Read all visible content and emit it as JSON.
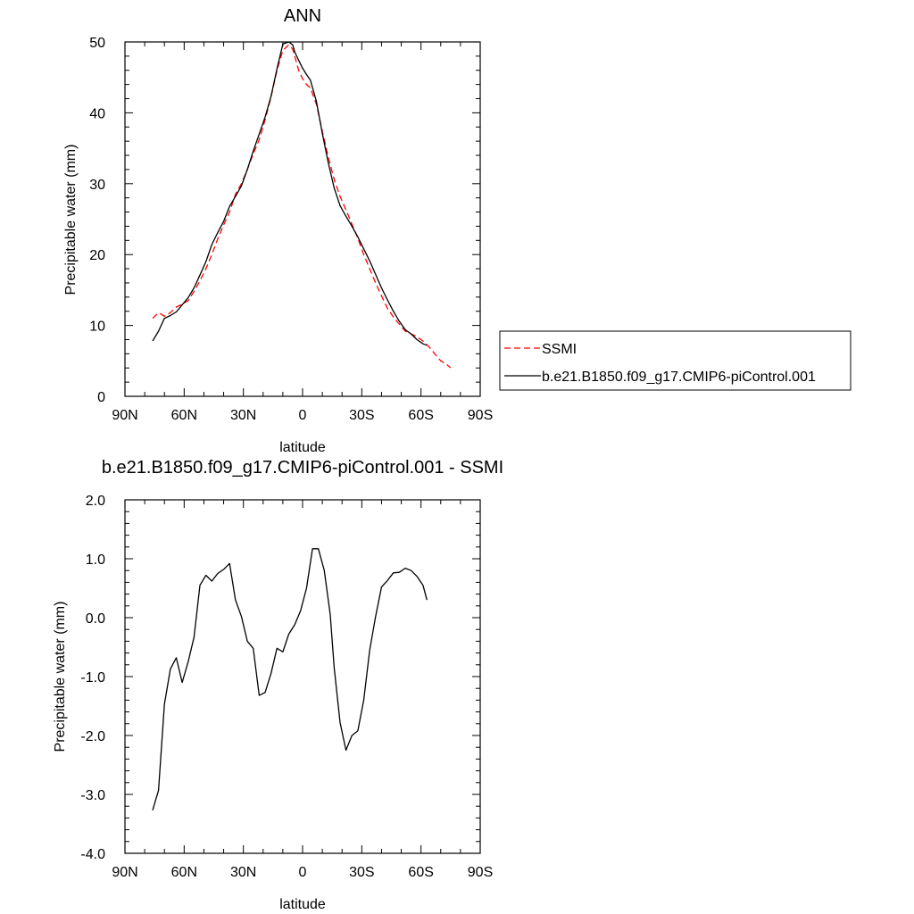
{
  "chart_data": [
    {
      "type": "line",
      "title": "ANN",
      "xlabel": "latitude",
      "ylabel": "Precipitable water (mm)",
      "xlim": [
        -90,
        90
      ],
      "ylim": [
        0,
        50
      ],
      "x_tick_values": [
        -90,
        -60,
        -30,
        0,
        30,
        60,
        90
      ],
      "x_tick_labels": [
        "90N",
        "60N",
        "30N",
        "0",
        "30S",
        "60S",
        "90S"
      ],
      "y_tick_values": [
        0,
        10,
        20,
        30,
        40,
        50
      ],
      "y_tick_labels": [
        "0",
        "10",
        "20",
        "30",
        "40",
        "50"
      ],
      "grid": false,
      "legend": {
        "placement": "right"
      },
      "series": [
        {
          "name": "SSMI",
          "color": "#ff0000",
          "dash": "dashed",
          "x": [
            -76,
            -73,
            -70,
            -67,
            -64,
            -61,
            -58,
            -55,
            -52,
            -49,
            -46,
            -43,
            -40,
            -37,
            -34,
            -31,
            -28,
            -25,
            -22,
            -19,
            -16,
            -13,
            -10,
            -7,
            -5,
            -4,
            -2,
            0,
            2,
            4,
            7,
            10,
            13,
            16,
            19,
            22,
            25,
            28,
            31,
            34,
            37,
            40,
            43,
            46,
            49,
            52,
            55,
            58,
            61,
            64,
            67,
            70,
            73,
            75
          ],
          "y": [
            11.0,
            11.8,
            11.3,
            11.8,
            12.6,
            13.0,
            13.5,
            14.8,
            16.3,
            18.0,
            20.0,
            22.2,
            24.2,
            26.0,
            28.5,
            30.0,
            32.0,
            34.2,
            36.2,
            39.0,
            42.2,
            46.0,
            48.8,
            49.6,
            49.0,
            48.0,
            46.0,
            44.8,
            44.0,
            43.5,
            41.2,
            37.4,
            33.8,
            30.6,
            28.2,
            26.3,
            24.3,
            22.3,
            20.0,
            18.0,
            16.0,
            14.2,
            12.4,
            11.2,
            10.2,
            9.2,
            8.8,
            8.4,
            7.8,
            7.0,
            6.0,
            5.0,
            4.5,
            4.0
          ]
        },
        {
          "name": "b.e21.B1850.f09_g17.CMIP6-piControl.001",
          "color": "#000000",
          "dash": "solid",
          "x": [
            -76,
            -73,
            -70,
            -67,
            -64,
            -61,
            -58,
            -55,
            -52,
            -49,
            -46,
            -43,
            -40,
            -37,
            -34,
            -31,
            -28,
            -25,
            -22,
            -19,
            -16,
            -13,
            -10,
            -7,
            -5,
            -4,
            -2,
            0,
            2,
            4,
            7,
            10,
            13,
            16,
            19,
            22,
            25,
            28,
            31,
            34,
            37,
            40,
            43,
            46,
            49,
            52,
            55,
            58,
            61,
            63
          ],
          "y": [
            7.8,
            9.2,
            11.0,
            11.4,
            11.9,
            12.9,
            13.9,
            15.3,
            17.1,
            19.0,
            21.4,
            23.1,
            24.7,
            26.8,
            28.2,
            29.7,
            32.0,
            34.6,
            37.0,
            39.4,
            42.3,
            46.2,
            49.7,
            50.0,
            49.6,
            48.6,
            47.4,
            46.3,
            45.4,
            44.6,
            41.6,
            37.1,
            33.0,
            29.4,
            26.9,
            25.4,
            24.0,
            22.5,
            20.8,
            19.1,
            17.2,
            15.3,
            13.6,
            12.0,
            10.6,
            9.4,
            8.8,
            8.0,
            7.4,
            7.2
          ]
        }
      ]
    },
    {
      "type": "line",
      "title": "b.e21.B1850.f09_g17.CMIP6-piControl.001 - SSMI",
      "xlabel": "latitude",
      "ylabel": "Precipitable water (mm)",
      "xlim": [
        -90,
        90
      ],
      "ylim": [
        -4.0,
        2.0
      ],
      "x_tick_values": [
        -90,
        -60,
        -30,
        0,
        30,
        60,
        90
      ],
      "x_tick_labels": [
        "90N",
        "60N",
        "30N",
        "0",
        "30S",
        "60S",
        "90S"
      ],
      "y_tick_values": [
        -4.0,
        -3.0,
        -2.0,
        -1.0,
        0.0,
        1.0,
        2.0
      ],
      "y_tick_labels": [
        "-4.0",
        "-3.0",
        "-2.0",
        "-1.0",
        "0.0",
        "1.0",
        "2.0"
      ],
      "grid": false,
      "series": [
        {
          "color": "#000000",
          "dash": "solid",
          "x": [
            -76,
            -73,
            -70,
            -67,
            -64,
            -61,
            -58,
            -55,
            -52,
            -49,
            -46,
            -43,
            -40,
            -37,
            -34,
            -31,
            -28,
            -25,
            -22,
            -19,
            -16,
            -13,
            -10,
            -7,
            -4,
            -1,
            2,
            5,
            8,
            11,
            14,
            16,
            19,
            22,
            25,
            28,
            31,
            34,
            37,
            40,
            43,
            46,
            49,
            52,
            55,
            58,
            61,
            63
          ],
          "y": [
            -3.27,
            -2.93,
            -1.47,
            -0.87,
            -0.68,
            -1.1,
            -0.75,
            -0.33,
            0.55,
            0.72,
            0.62,
            0.75,
            0.82,
            0.92,
            0.3,
            0.02,
            -0.4,
            -0.52,
            -1.32,
            -1.27,
            -0.95,
            -0.52,
            -0.58,
            -0.28,
            -0.12,
            0.12,
            0.5,
            1.17,
            1.17,
            0.8,
            0.05,
            -0.85,
            -1.78,
            -2.25,
            -2.0,
            -1.92,
            -1.4,
            -0.55,
            0.02,
            0.52,
            0.63,
            0.76,
            0.77,
            0.84,
            0.8,
            0.7,
            0.55,
            0.3
          ]
        }
      ]
    }
  ]
}
